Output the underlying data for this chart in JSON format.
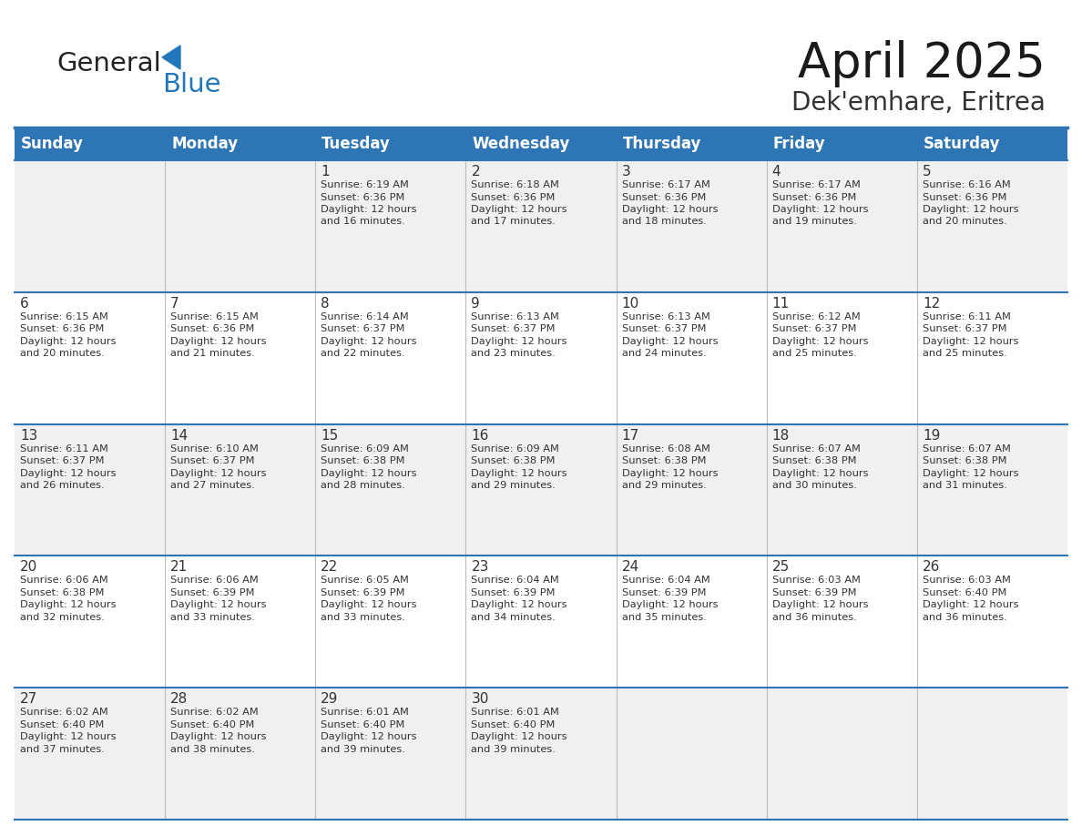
{
  "title": "April 2025",
  "subtitle": "Dek'emhare, Eritrea",
  "days_of_week": [
    "Sunday",
    "Monday",
    "Tuesday",
    "Wednesday",
    "Thursday",
    "Friday",
    "Saturday"
  ],
  "header_bg": "#2E75B6",
  "header_text_color": "#FFFFFF",
  "row_bg_even": "#F0F0F0",
  "row_bg_odd": "#FFFFFF",
  "cell_text_color": "#333333",
  "border_color": "#2E75B6",
  "logo_general_color": "#222222",
  "logo_blue_color": "#2277BB",
  "calendar_data": [
    [
      {
        "day": "",
        "sunrise": "",
        "sunset": "",
        "daylight": ""
      },
      {
        "day": "",
        "sunrise": "",
        "sunset": "",
        "daylight": ""
      },
      {
        "day": "1",
        "sunrise": "6:19 AM",
        "sunset": "6:36 PM",
        "daylight": "12 hours and 16 minutes."
      },
      {
        "day": "2",
        "sunrise": "6:18 AM",
        "sunset": "6:36 PM",
        "daylight": "12 hours and 17 minutes."
      },
      {
        "day": "3",
        "sunrise": "6:17 AM",
        "sunset": "6:36 PM",
        "daylight": "12 hours and 18 minutes."
      },
      {
        "day": "4",
        "sunrise": "6:17 AM",
        "sunset": "6:36 PM",
        "daylight": "12 hours and 19 minutes."
      },
      {
        "day": "5",
        "sunrise": "6:16 AM",
        "sunset": "6:36 PM",
        "daylight": "12 hours and 20 minutes."
      }
    ],
    [
      {
        "day": "6",
        "sunrise": "6:15 AM",
        "sunset": "6:36 PM",
        "daylight": "12 hours and 20 minutes."
      },
      {
        "day": "7",
        "sunrise": "6:15 AM",
        "sunset": "6:36 PM",
        "daylight": "12 hours and 21 minutes."
      },
      {
        "day": "8",
        "sunrise": "6:14 AM",
        "sunset": "6:37 PM",
        "daylight": "12 hours and 22 minutes."
      },
      {
        "day": "9",
        "sunrise": "6:13 AM",
        "sunset": "6:37 PM",
        "daylight": "12 hours and 23 minutes."
      },
      {
        "day": "10",
        "sunrise": "6:13 AM",
        "sunset": "6:37 PM",
        "daylight": "12 hours and 24 minutes."
      },
      {
        "day": "11",
        "sunrise": "6:12 AM",
        "sunset": "6:37 PM",
        "daylight": "12 hours and 25 minutes."
      },
      {
        "day": "12",
        "sunrise": "6:11 AM",
        "sunset": "6:37 PM",
        "daylight": "12 hours and 25 minutes."
      }
    ],
    [
      {
        "day": "13",
        "sunrise": "6:11 AM",
        "sunset": "6:37 PM",
        "daylight": "12 hours and 26 minutes."
      },
      {
        "day": "14",
        "sunrise": "6:10 AM",
        "sunset": "6:37 PM",
        "daylight": "12 hours and 27 minutes."
      },
      {
        "day": "15",
        "sunrise": "6:09 AM",
        "sunset": "6:38 PM",
        "daylight": "12 hours and 28 minutes."
      },
      {
        "day": "16",
        "sunrise": "6:09 AM",
        "sunset": "6:38 PM",
        "daylight": "12 hours and 29 minutes."
      },
      {
        "day": "17",
        "sunrise": "6:08 AM",
        "sunset": "6:38 PM",
        "daylight": "12 hours and 29 minutes."
      },
      {
        "day": "18",
        "sunrise": "6:07 AM",
        "sunset": "6:38 PM",
        "daylight": "12 hours and 30 minutes."
      },
      {
        "day": "19",
        "sunrise": "6:07 AM",
        "sunset": "6:38 PM",
        "daylight": "12 hours and 31 minutes."
      }
    ],
    [
      {
        "day": "20",
        "sunrise": "6:06 AM",
        "sunset": "6:38 PM",
        "daylight": "12 hours and 32 minutes."
      },
      {
        "day": "21",
        "sunrise": "6:06 AM",
        "sunset": "6:39 PM",
        "daylight": "12 hours and 33 minutes."
      },
      {
        "day": "22",
        "sunrise": "6:05 AM",
        "sunset": "6:39 PM",
        "daylight": "12 hours and 33 minutes."
      },
      {
        "day": "23",
        "sunrise": "6:04 AM",
        "sunset": "6:39 PM",
        "daylight": "12 hours and 34 minutes."
      },
      {
        "day": "24",
        "sunrise": "6:04 AM",
        "sunset": "6:39 PM",
        "daylight": "12 hours and 35 minutes."
      },
      {
        "day": "25",
        "sunrise": "6:03 AM",
        "sunset": "6:39 PM",
        "daylight": "12 hours and 36 minutes."
      },
      {
        "day": "26",
        "sunrise": "6:03 AM",
        "sunset": "6:40 PM",
        "daylight": "12 hours and 36 minutes."
      }
    ],
    [
      {
        "day": "27",
        "sunrise": "6:02 AM",
        "sunset": "6:40 PM",
        "daylight": "12 hours and 37 minutes."
      },
      {
        "day": "28",
        "sunrise": "6:02 AM",
        "sunset": "6:40 PM",
        "daylight": "12 hours and 38 minutes."
      },
      {
        "day": "29",
        "sunrise": "6:01 AM",
        "sunset": "6:40 PM",
        "daylight": "12 hours and 39 minutes."
      },
      {
        "day": "30",
        "sunrise": "6:01 AM",
        "sunset": "6:40 PM",
        "daylight": "12 hours and 39 minutes."
      },
      {
        "day": "",
        "sunrise": "",
        "sunset": "",
        "daylight": ""
      },
      {
        "day": "",
        "sunrise": "",
        "sunset": "",
        "daylight": ""
      },
      {
        "day": "",
        "sunrise": "",
        "sunset": "",
        "daylight": ""
      }
    ]
  ]
}
